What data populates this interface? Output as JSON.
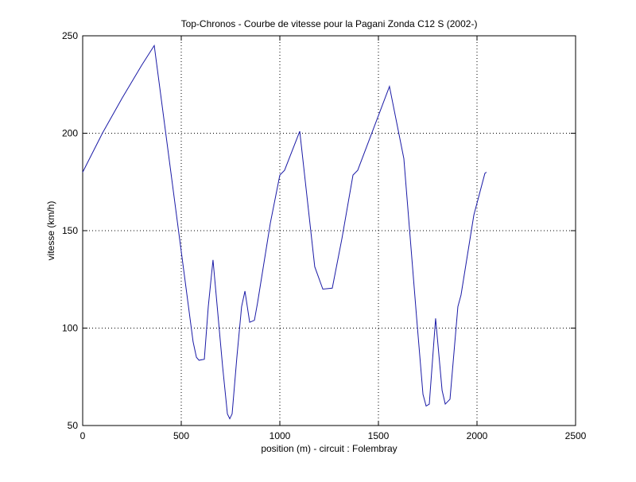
{
  "chart_data": {
    "type": "line",
    "title": "Top-Chronos - Courbe de vitesse pour la Pagani Zonda C12 S (2002-)",
    "xlabel": "position (m) - circuit : Folembray",
    "ylabel": "vitesse (km/h)",
    "x": [
      0,
      100,
      200,
      300,
      363,
      560,
      577,
      590,
      617,
      637,
      661,
      710,
      734,
      746,
      758,
      782,
      806,
      823,
      847,
      871,
      887,
      952,
      1000,
      1024,
      1101,
      1177,
      1218,
      1266,
      1315,
      1371,
      1395,
      1556,
      1629,
      1694,
      1726,
      1742,
      1758,
      1790,
      1823,
      1839,
      1863,
      1903,
      1919,
      1984,
      2040,
      2048
    ],
    "series": [
      {
        "name": "vitesse",
        "color": "#1a1aa6",
        "values": [
          180,
          200,
          218,
          235,
          245,
          93,
          85,
          83.5,
          84,
          111,
          135,
          80,
          56,
          53.5,
          56,
          85,
          111,
          119,
          103,
          104,
          113,
          154,
          178.5,
          181,
          201,
          131.5,
          120,
          120.5,
          146,
          178.5,
          181,
          224,
          187,
          105,
          66,
          60,
          61,
          105,
          68,
          61,
          63.5,
          111,
          117,
          158,
          179.4,
          180
        ]
      }
    ],
    "xlim": [
      0,
      2500
    ],
    "xticks": [
      0,
      500,
      1000,
      1500,
      2000,
      2500
    ],
    "ylim": [
      50,
      250
    ],
    "yticks": [
      50,
      100,
      150,
      200,
      250
    ],
    "grid": true
  }
}
